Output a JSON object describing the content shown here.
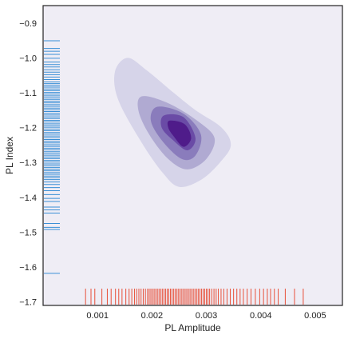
{
  "chart_data": {
    "type": "density_contour",
    "xlabel": "PL Amplitude",
    "ylabel": "PL Index",
    "xlim": [
      0.0,
      0.0055
    ],
    "ylim": [
      -1.71,
      -0.85
    ],
    "xticks": [
      {
        "value": 0.001,
        "label": "0.001"
      },
      {
        "value": 0.002,
        "label": "0.002"
      },
      {
        "value": 0.003,
        "label": "0.003"
      },
      {
        "value": 0.004,
        "label": "0.004"
      },
      {
        "value": 0.005,
        "label": "0.005"
      }
    ],
    "yticks": [
      {
        "value": -0.9,
        "label": "−0.9"
      },
      {
        "value": -1.0,
        "label": "−1.0"
      },
      {
        "value": -1.1,
        "label": "−1.1"
      },
      {
        "value": -1.2,
        "label": "−1.2"
      },
      {
        "value": -1.3,
        "label": "−1.3"
      },
      {
        "value": -1.4,
        "label": "−1.4"
      },
      {
        "value": -1.5,
        "label": "−1.5"
      },
      {
        "value": -1.6,
        "label": "−1.6"
      },
      {
        "value": -1.7,
        "label": "−1.7"
      }
    ],
    "contour_levels": [
      {
        "level": 1,
        "color": "#d6d4e9",
        "points": [
          [
            0.00155,
            -1.0
          ],
          [
            0.0019,
            -1.035
          ],
          [
            0.0024,
            -1.1
          ],
          [
            0.0028,
            -1.15
          ],
          [
            0.00328,
            -1.2
          ],
          [
            0.00345,
            -1.25
          ],
          [
            0.00325,
            -1.3
          ],
          [
            0.0029,
            -1.35
          ],
          [
            0.0025,
            -1.37
          ],
          [
            0.0022,
            -1.33
          ],
          [
            0.0018,
            -1.24
          ],
          [
            0.00138,
            -1.12
          ],
          [
            0.00132,
            -1.04
          ]
        ]
      },
      {
        "level": 2,
        "color": "#b0aad2",
        "points": [
          [
            0.00182,
            -1.11
          ],
          [
            0.0023,
            -1.13
          ],
          [
            0.00283,
            -1.18
          ],
          [
            0.00315,
            -1.23
          ],
          [
            0.003,
            -1.29
          ],
          [
            0.00265,
            -1.32
          ],
          [
            0.0023,
            -1.29
          ],
          [
            0.00195,
            -1.22
          ],
          [
            0.00175,
            -1.15
          ]
        ]
      },
      {
        "level": 3,
        "color": "#8a7cbc",
        "points": [
          [
            0.0021,
            -1.14
          ],
          [
            0.00258,
            -1.16
          ],
          [
            0.0029,
            -1.22
          ],
          [
            0.0028,
            -1.28
          ],
          [
            0.00255,
            -1.29
          ],
          [
            0.0022,
            -1.24
          ],
          [
            0.00198,
            -1.18
          ]
        ]
      },
      {
        "level": 4,
        "color": "#6a4ba6",
        "points": [
          [
            0.00222,
            -1.165
          ],
          [
            0.00258,
            -1.17
          ],
          [
            0.0028,
            -1.23
          ],
          [
            0.00265,
            -1.265
          ],
          [
            0.00238,
            -1.235
          ],
          [
            0.00218,
            -1.2
          ]
        ]
      },
      {
        "level": 5,
        "color": "#4f1c8a",
        "points": [
          [
            0.00232,
            -1.18
          ],
          [
            0.0026,
            -1.19
          ],
          [
            0.00272,
            -1.23
          ],
          [
            0.00258,
            -1.255
          ],
          [
            0.0024,
            -1.225
          ],
          [
            0.0023,
            -1.2
          ]
        ]
      }
    ],
    "x_rug": {
      "color": "#e8503a",
      "values": [
        0.00078,
        0.00088,
        0.00095,
        0.00108,
        0.00118,
        0.00125,
        0.00133,
        0.00139,
        0.00145,
        0.00152,
        0.00158,
        0.00163,
        0.00168,
        0.00172,
        0.00176,
        0.0018,
        0.00184,
        0.00188,
        0.00192,
        0.00195,
        0.00198,
        0.00201,
        0.00204,
        0.00207,
        0.0021,
        0.00213,
        0.00216,
        0.00219,
        0.00222,
        0.00225,
        0.00228,
        0.00231,
        0.00234,
        0.00237,
        0.0024,
        0.00243,
        0.00246,
        0.00249,
        0.00252,
        0.00255,
        0.00258,
        0.00261,
        0.00264,
        0.00267,
        0.0027,
        0.00273,
        0.00276,
        0.00279,
        0.00282,
        0.00285,
        0.00288,
        0.00291,
        0.00294,
        0.00297,
        0.003,
        0.00303,
        0.00306,
        0.0031,
        0.00314,
        0.00318,
        0.00322,
        0.00327,
        0.00332,
        0.00338,
        0.00344,
        0.0035,
        0.00356,
        0.00362,
        0.00368,
        0.00375,
        0.00382,
        0.0039,
        0.00398,
        0.00405,
        0.00412,
        0.00418,
        0.00425,
        0.00432,
        0.00445,
        0.00462,
        0.00478
      ]
    },
    "y_rug": {
      "color": "#3a8fd6",
      "values": [
        -0.951,
        -0.973,
        -0.981,
        -0.99,
        -1.001,
        -1.012,
        -1.019,
        -1.026,
        -1.034,
        -1.041,
        -1.048,
        -1.055,
        -1.062,
        -1.069,
        -1.074,
        -1.079,
        -1.084,
        -1.089,
        -1.094,
        -1.099,
        -1.104,
        -1.109,
        -1.114,
        -1.119,
        -1.124,
        -1.129,
        -1.134,
        -1.139,
        -1.144,
        -1.149,
        -1.154,
        -1.159,
        -1.164,
        -1.169,
        -1.174,
        -1.179,
        -1.184,
        -1.189,
        -1.194,
        -1.199,
        -1.204,
        -1.209,
        -1.214,
        -1.219,
        -1.224,
        -1.229,
        -1.234,
        -1.239,
        -1.244,
        -1.249,
        -1.254,
        -1.259,
        -1.264,
        -1.269,
        -1.274,
        -1.279,
        -1.284,
        -1.289,
        -1.294,
        -1.299,
        -1.304,
        -1.309,
        -1.314,
        -1.319,
        -1.324,
        -1.329,
        -1.334,
        -1.339,
        -1.344,
        -1.349,
        -1.356,
        -1.363,
        -1.372,
        -1.381,
        -1.392,
        -1.403,
        -1.412,
        -1.428,
        -1.436,
        -1.445,
        -1.475,
        -1.486,
        -1.492,
        -1.618
      ]
    },
    "background": "#efedf5",
    "grid": false,
    "legend": "none"
  }
}
